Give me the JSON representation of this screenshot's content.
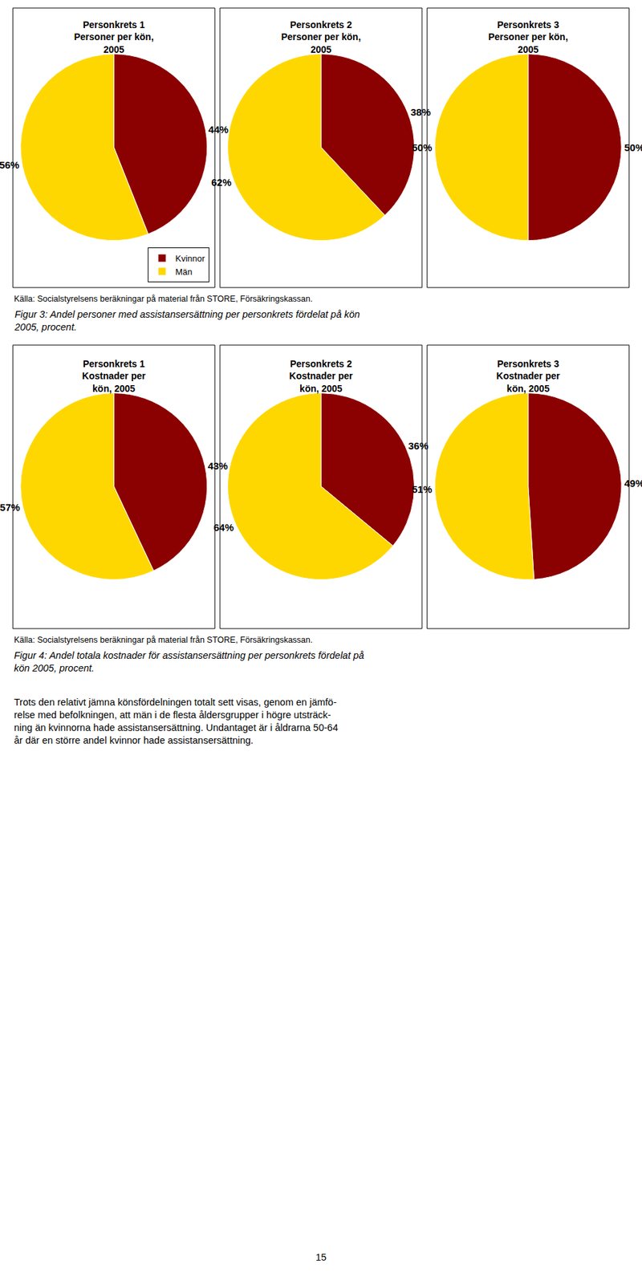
{
  "chart_data": [
    {
      "type": "pie",
      "title": "Personkrets 1\nPersoner per kön,\n2005",
      "categories": [
        "Kvinnor",
        "Män"
      ],
      "values": [
        44,
        56
      ],
      "value_labels": [
        "44%",
        "56%"
      ],
      "colors": [
        "#8B0000",
        "#FFD700"
      ],
      "data_labels": true,
      "legend": "lower right"
    },
    {
      "type": "pie",
      "title": "Personkrets 2\nPersoner per kön,\n2005",
      "categories": [
        "Kvinnor",
        "Män"
      ],
      "values": [
        38,
        62
      ],
      "value_labels": [
        "38%",
        "62%"
      ],
      "colors": [
        "#8B0000",
        "#FFD700"
      ],
      "data_labels": true,
      "legend": "lower right"
    },
    {
      "type": "pie",
      "title": "Personkrets 3\nPersoner per kön,\n2005",
      "categories": [
        "Kvinnor",
        "Män"
      ],
      "values": [
        50,
        50
      ],
      "value_labels": [
        "50%",
        "50%"
      ],
      "colors": [
        "#8B0000",
        "#FFD700"
      ],
      "data_labels": true,
      "legend": "lower right"
    },
    {
      "type": "pie",
      "title": "Personkrets 1\nKostnader per\nkön, 2005",
      "categories": [
        "Kvinnor",
        "Män"
      ],
      "values": [
        43,
        57
      ],
      "value_labels": [
        "43%",
        "57%"
      ],
      "colors": [
        "#8B0000",
        "#FFD700"
      ],
      "data_labels": true,
      "legend": "lower right"
    },
    {
      "type": "pie",
      "title": "Personkrets 2\nKostnader per\nkön, 2005",
      "categories": [
        "Kvinnor",
        "Män"
      ],
      "values": [
        36,
        64
      ],
      "value_labels": [
        "36%",
        "64%"
      ],
      "colors": [
        "#8B0000",
        "#FFD700"
      ],
      "data_labels": true,
      "legend": "lower right"
    },
    {
      "type": "pie",
      "title": "Personkrets 3\nKostnader per\nkön, 2005",
      "categories": [
        "Kvinnor",
        "Män"
      ],
      "values": [
        49,
        51
      ],
      "value_labels": [
        "49%",
        "51%"
      ],
      "colors": [
        "#8B0000",
        "#FFD700"
      ],
      "data_labels": true,
      "legend": "lower right"
    }
  ],
  "annotations": [
    "Källa: Socialstyrelsens beräkningar på material från STORE, Försäkringskassan.",
    "Figur 3: Andel personer med assistansersättning per personkrets fördelat på kön\n2005, procent.",
    "Källa: Socialstyrelsens beräkningar på material från STORE, Försäkringskassan.",
    "Figur 4: Andel totala kostnader för assistansersättning per personkrets fördelat på\nkön 2005, procent.",
    "Trots den relativt jämna könsfördelningen totalt sett visas, genom en jämfö-\nrelse med befolkningen, att män i de flesta åldersgrupper i högre utsträck-\nning än kvinnorna hade assistansersättning. Undantaget är i åldrarna 50-64\når där en större andel kvinnor hade assistansersättning.",
    "15"
  ]
}
